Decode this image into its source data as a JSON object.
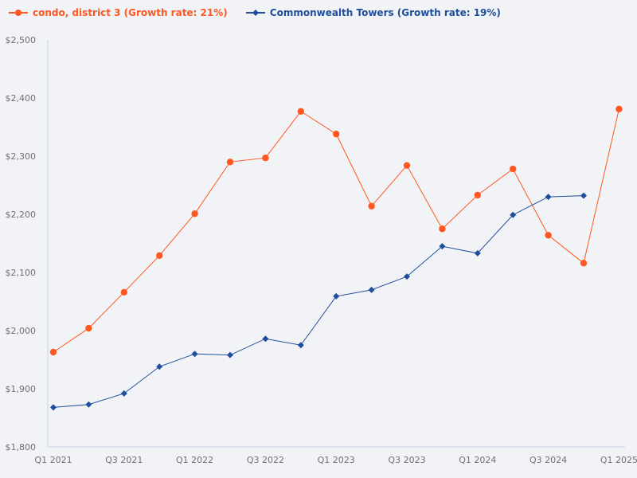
{
  "chart_data": {
    "type": "line",
    "title": "",
    "xlabel": "",
    "ylabel": "",
    "ylim": [
      1800,
      2500
    ],
    "y_ticks": [
      "$1,800",
      "$1,900",
      "$2,000",
      "$2,100",
      "$2,200",
      "$2,300",
      "$2,400",
      "$2,500"
    ],
    "y_tick_values": [
      1800,
      1900,
      2000,
      2100,
      2200,
      2300,
      2400,
      2500
    ],
    "x": [
      "Q1 2021",
      "Q2 2021",
      "Q3 2021",
      "Q4 2021",
      "Q1 2022",
      "Q2 2022",
      "Q3 2022",
      "Q4 2022",
      "Q1 2023",
      "Q2 2023",
      "Q3 2023",
      "Q4 2023",
      "Q1 2024",
      "Q2 2024",
      "Q3 2024",
      "Q4 2024",
      "Q1 2025"
    ],
    "x_tick_labels": [
      "Q1 2021",
      "",
      "Q3 2021",
      "",
      "Q1 2022",
      "",
      "Q3 2022",
      "",
      "Q1 2023",
      "",
      "Q3 2023",
      "",
      "Q1 2024",
      "",
      "Q3 2024",
      "",
      "Q1 2025"
    ],
    "grid": false,
    "legend_position": "top-left",
    "series": [
      {
        "name": "condo, district 3 (Growth rate: 21%)",
        "color": "#ff5722",
        "marker": "circle",
        "values": [
          1963,
          2004,
          2066,
          2129,
          2201,
          2290,
          2297,
          2377,
          2338,
          2214,
          2284,
          2175,
          2233,
          2278,
          2164,
          2116,
          2381
        ]
      },
      {
        "name": "Commonwealth Towers (Growth rate: 19%)",
        "color": "#1f4e9c",
        "marker": "diamond",
        "values": [
          1868,
          1873,
          1892,
          1938,
          1960,
          1958,
          1986,
          1975,
          2059,
          2070,
          2093,
          2145,
          2133,
          2199,
          2230,
          2232,
          null
        ]
      }
    ]
  },
  "legend": {
    "items": [
      {
        "label": "condo, district 3 (Growth rate: 21%)",
        "color": "#ff5722"
      },
      {
        "label": "Commonwealth Towers (Growth rate: 19%)",
        "color": "#1f4e9c"
      }
    ]
  },
  "colors": {
    "background": "#f2f3f6",
    "axis": "#c5d0e3",
    "tick_text": "#707070"
  }
}
